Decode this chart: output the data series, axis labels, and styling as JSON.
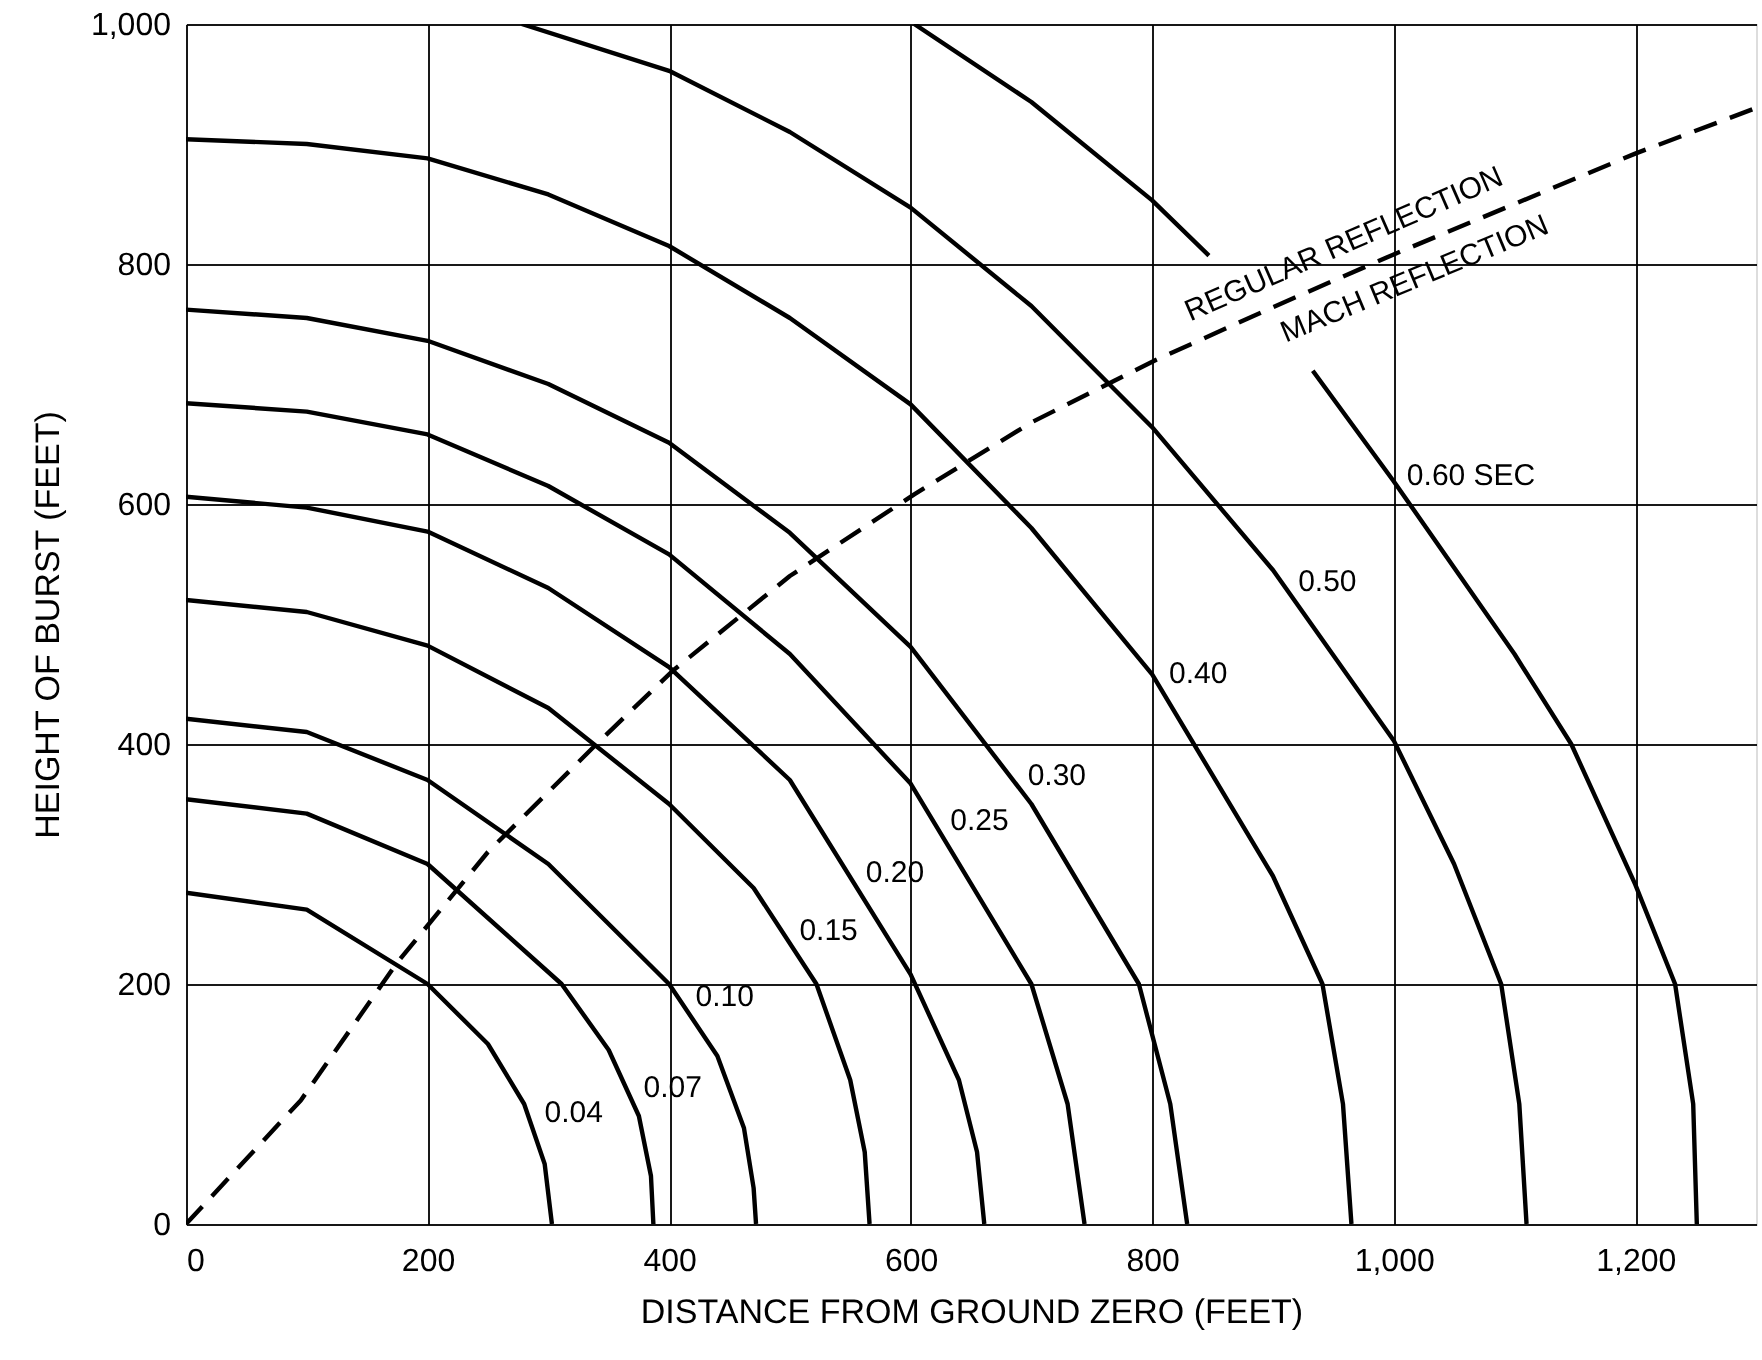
{
  "chart_data": {
    "type": "line",
    "xlabel": "DISTANCE FROM GROUND ZERO (FEET)",
    "ylabel": "HEIGHT OF BURST (FEET)",
    "xlim": [
      0,
      1300
    ],
    "xticks": [
      0,
      200,
      400,
      600,
      800,
      {
        "value": 1000,
        "label": "1,000"
      },
      {
        "value": 1200,
        "label": "1,200"
      }
    ],
    "ylim": [
      0,
      1000
    ],
    "yticks": [
      0,
      200,
      400,
      600,
      800,
      {
        "value": 1000,
        "label": "1,000"
      }
    ],
    "grid": true,
    "marker": "none",
    "series": [
      {
        "color": "#000000",
        "line_style": "solid",
        "x": [
          0,
          100,
          200,
          250,
          280,
          297,
          303
        ],
        "values": [
          276,
          262,
          200,
          150,
          100,
          50,
          0
        ]
      },
      {
        "color": "#000000",
        "line_style": "solid",
        "x": [
          0,
          100,
          200,
          311,
          350,
          375,
          385,
          387
        ],
        "values": [
          354,
          342,
          300,
          200,
          145,
          90,
          40,
          0
        ]
      },
      {
        "color": "#000000",
        "line_style": "solid",
        "x": [
          0,
          100,
          200,
          300,
          400,
          440,
          462,
          470,
          472
        ],
        "values": [
          421,
          410,
          370,
          300,
          200,
          140,
          80,
          30,
          0
        ]
      },
      {
        "color": "#000000",
        "line_style": "solid",
        "x": [
          0,
          100,
          200,
          300,
          400,
          470,
          522,
          550,
          562,
          566
        ],
        "values": [
          520,
          510,
          482,
          430,
          350,
          280,
          200,
          120,
          60,
          0
        ]
      },
      {
        "color": "#000000",
        "line_style": "solid",
        "x": [
          0,
          100,
          200,
          300,
          400,
          500,
          600,
          640,
          655,
          661
        ],
        "values": [
          606,
          597,
          577,
          530,
          464,
          370,
          208,
          120,
          60,
          0
        ]
      },
      {
        "color": "#000000",
        "line_style": "solid",
        "x": [
          0,
          100,
          200,
          300,
          400,
          500,
          600,
          700,
          730,
          744
        ],
        "values": [
          684,
          677,
          658,
          615,
          558,
          475,
          367,
          200,
          100,
          0
        ]
      },
      {
        "color": "#000000",
        "line_style": "solid",
        "x": [
          0,
          100,
          200,
          300,
          400,
          500,
          600,
          700,
          789,
          815,
          829
        ],
        "values": [
          762,
          755,
          736,
          700,
          651,
          576,
          481,
          350,
          200,
          100,
          0
        ]
      },
      {
        "color": "#000000",
        "line_style": "solid",
        "x": [
          0,
          100,
          200,
          300,
          400,
          500,
          600,
          700,
          800,
          900,
          941,
          958,
          965
        ],
        "values": [
          904,
          900,
          888,
          858,
          815,
          755,
          683,
          580,
          458,
          290,
          200,
          100,
          0
        ]
      },
      {
        "color": "#000000",
        "line_style": "solid",
        "x": [
          278,
          400,
          500,
          600,
          700,
          800,
          900,
          1000,
          1050,
          1089,
          1104,
          1110
        ],
        "values": [
          1000,
          961,
          910,
          847,
          765,
          664,
          545,
          403,
          300,
          200,
          100,
          0
        ]
      },
      {
        "color": "#000000",
        "line_style": "solid",
        "x": [
          603,
          700,
          800,
          847,
          890,
          933,
          1000,
          1100,
          1147,
          1200,
          1233,
          1248,
          1251
        ],
        "values": [
          1000,
          935,
          853,
          807,
          null,
          711,
          619,
          475,
          400,
          283,
          200,
          100,
          0
        ]
      },
      {
        "color": "#000000",
        "line_style": "dashed",
        "x": [
          0,
          95,
          175,
          250,
          342,
          403,
          500,
          603,
          700,
          803,
          900,
          1000,
          1100,
          1200,
          1300
        ],
        "values": [
          0,
          103,
          218,
          310,
          402,
          461,
          540,
          608,
          668,
          720,
          764,
          808,
          850,
          892,
          930
        ]
      }
    ],
    "annotations": [
      {
        "text": "0.04",
        "x": 282,
        "y": 93
      },
      {
        "text": "0.07",
        "x": 364,
        "y": 114
      },
      {
        "text": "0.10",
        "x": 407,
        "y": 190
      },
      {
        "text": "0.15",
        "x": 493,
        "y": 245
      },
      {
        "text": "0.20",
        "x": 548,
        "y": 293
      },
      {
        "text": "0.25",
        "x": 618,
        "y": 337
      },
      {
        "text": "0.30",
        "x": 682,
        "y": 374
      },
      {
        "text": "0.40",
        "x": 799,
        "y": 459
      },
      {
        "text": "0.50",
        "x": 906,
        "y": 536
      },
      {
        "text": "0.60 SEC",
        "x": 996,
        "y": 624
      },
      "REGULAR REFLECTION",
      "MACH REFLECTION"
    ]
  }
}
